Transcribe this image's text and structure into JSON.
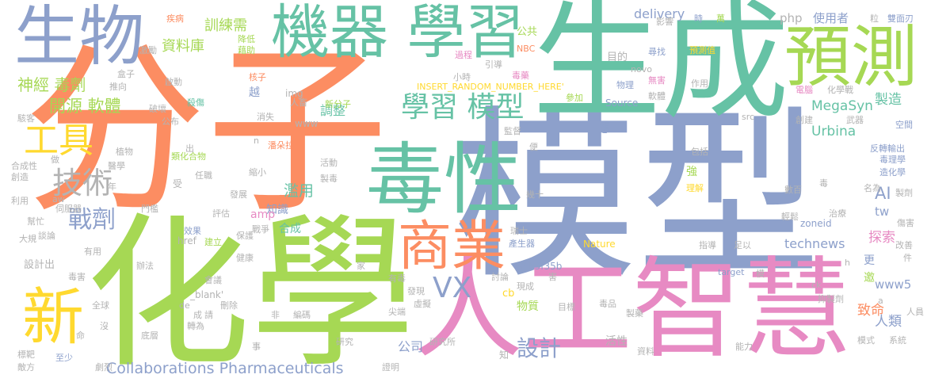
{
  "colors": {
    "orange": "#fc8d62",
    "green": "#66c2a5",
    "blue": "#8da0cb",
    "pink": "#e78ac3",
    "lime": "#a6d854",
    "yellow": "#ffd92f",
    "tan": "#e5c494",
    "grey": "#b3b3b3"
  },
  "words": {
    "fenzi": "分子",
    "moxing": "模型",
    "shengcheng": "生成",
    "huaxue": "化學",
    "rengongzhihui": "人工智慧",
    "duxing": "毒性",
    "shengwu": "生物",
    "jiqixuexi": "機器 學習",
    "yuce": "預測",
    "shangye": "商業",
    "xin": "新",
    "xuexi_moxing": "學習 模型",
    "gongju": "工具",
    "jishu": "技術",
    "zhanji": "戰劑",
    "shenjingduji": "神經 毒劑",
    "kaiyuan": "開源 軟體",
    "ziliaoku": "資料庫",
    "xunliangji": "訓練需",
    "vx": "VX",
    "sheji": "設計",
    "collab": "Collaborations Pharmaceuticals",
    "delivery": "delivery",
    "php": "php",
    "shiyongzhe": "使用者",
    "megasyn": "MegaSyn",
    "urbina": "Urbina",
    "technews": "technews",
    "www5": "www5",
    "insert": "INSERT_RANDOM_NUMBER_HERE'",
    "lanyong": "濫用",
    "tiaozheng": "調整",
    "zhishi": "知識",
    "hecheng": "合成",
    "jianglì": "獎勵",
    "wuzhi": "物質",
    "gongsi": "公司",
    "huoxing": "活性",
    "zhiming": "致命",
    "renlei": "人類",
    "tansuo": "探索",
    "zhizao": "製造",
    "ai": "AI",
    "tw": "tw",
    "amp": "amp",
    "sheji_chu": "設計出",
    "nature": "Nature",
    "a4b": "a4b3f35b",
    "zoneid": "zoneid",
    "href": "href",
    "blank": "_blank'",
    "source": "Source",
    "www": "www",
    "img": "img",
    "novo": "novo",
    "nbc": "NBC",
    "target": "target",
    "gonggong": "公共",
    "mudi": "目的",
    "cb": "cb",
    "zengjia": "增加",
    "yue": "越",
    "xiang": "想",
    "qiang": "強",
    "keng": "更",
    "yao": "邀",
    "pandora": "潘朵拉",
    "leihuahewu": "類化合物",
    "sihuan": "殺傷",
    "jiangdi": "降低",
    "jiezhu": "藉助",
    "jibing": "疾病",
    "yingxiang": "影響",
    "xunzhao": "尋找",
    "yuceqi": "預測值",
    "shuangmianren": "雙面刃",
    "li": "粒",
    "wan": "萬",
    "shi": "時",
    "jiaohua": "教導",
    "hezi": "核子",
    "xinfenzi": "新分子",
    "canjia": "參加",
    "duyao": "毒藥",
    "wuli": "物理",
    "wuhai": "無害",
    "zuoyong": "作用",
    "ruanti": "軟體",
    "dianna": "電腦",
    "huaxuezhan": "化學戰",
    "guocheng": "過程",
    "yindao": "引導",
    "xiaoshi": "小時",
    "chuangjian": "創建",
    "wuqi": "武器",
    "kongjian": "空間",
    "fanzhuanshuchu": "反轉輸出",
    "duwuxue": "毒理學",
    "zaohuaxue": "造化學",
    "jiandu": "監督",
    "bian": "便",
    "baokuo": "包括",
    "lijie": "理解",
    "xiaoguo": "效果",
    "jianli": "建立",
    "baohu": "保護",
    "jiankang": "健康",
    "xiaoli": "小麗",
    "ruishi": "瑞士",
    "chanshengqi": "產生器",
    "hai": "害",
    "jia": "家",
    "banfa": "辦法",
    "duhai": "毒害",
    "quanqiu": "全球",
    "mei": "沒",
    "ming": "命",
    "biaoba": "標靶",
    "difang": "敵方",
    "zhishao": "至少",
    "julie": "劇烈",
    "yanjiu": "研究",
    "yanjiusuo": "研究所",
    "zhengming": "證明",
    "zhi": "知",
    "fasheng": "發現",
    "xuni": "虛擬",
    "jianduan": "尖端",
    "xianduo": "現成",
    "taolun": "討論",
    "youdu": "有毒",
    "mubiao": "目標",
    "dupin": "毒品",
    "zhiyao": "製藥",
    "ziliao": "資料",
    "nengli": "能力",
    "moshi": "模式",
    "xitong": "系統",
    "yiquan": "抑製劑",
    "renyuan": "人員",
    "ck": "ck",
    "shanchu": "刪除",
    "zhuanwei": "轉為",
    "bianma": "編碼",
    "dice": "底層",
    "huiyuan": "會議",
    "qing": "請",
    "cheng": "成",
    "fei": "非",
    "shi2": "事",
    "de": "de",
    "gaishan": "改善",
    "jian": "件",
    "yinhuan": "傷害",
    "zhiliao": "治療",
    "shubai": "數百",
    "du": "毒",
    "qingsong": "輕鬆",
    "mingwei": "名為",
    "zhiji": "製劑",
    "zhidao": "指導",
    "zuyi": "足以",
    "mo": "模",
    "jishi": "幾十",
    "chuangzao": "創造",
    "liyong": "利用",
    "bangmang": "幫忙",
    "dajian": "大規",
    "tanlun": "談論",
    "youyong": "有用",
    "aw": "aw",
    "sifuqi": "伺服器",
    "menkan": "門檻",
    "pinggu": "評估",
    "zhanzheng": "戰爭",
    "fazhan": "發展",
    "renchu": "人畜",
    "xiaoshi2": "消失",
    "gongbu": "公布",
    "pohuai": "破壞",
    "qidong": "啟動",
    "tuixiang": "推向",
    "jiliao": "激勵",
    "hezi2": "盒子",
    "haike": "駭客",
    "zhiwu": "植物",
    "yixue": "醫學",
    "hechengxing": "合成性",
    "zuo": "做",
    "renzhi": "任職",
    "suoxiao": "縮小",
    "zhidu": "製毒",
    "huodong": "活動",
    "shou": "受",
    "nian": "年",
    "n": "n",
    "chu": "出",
    "src": "src",
    "a": "a",
    "h": "h"
  }
}
